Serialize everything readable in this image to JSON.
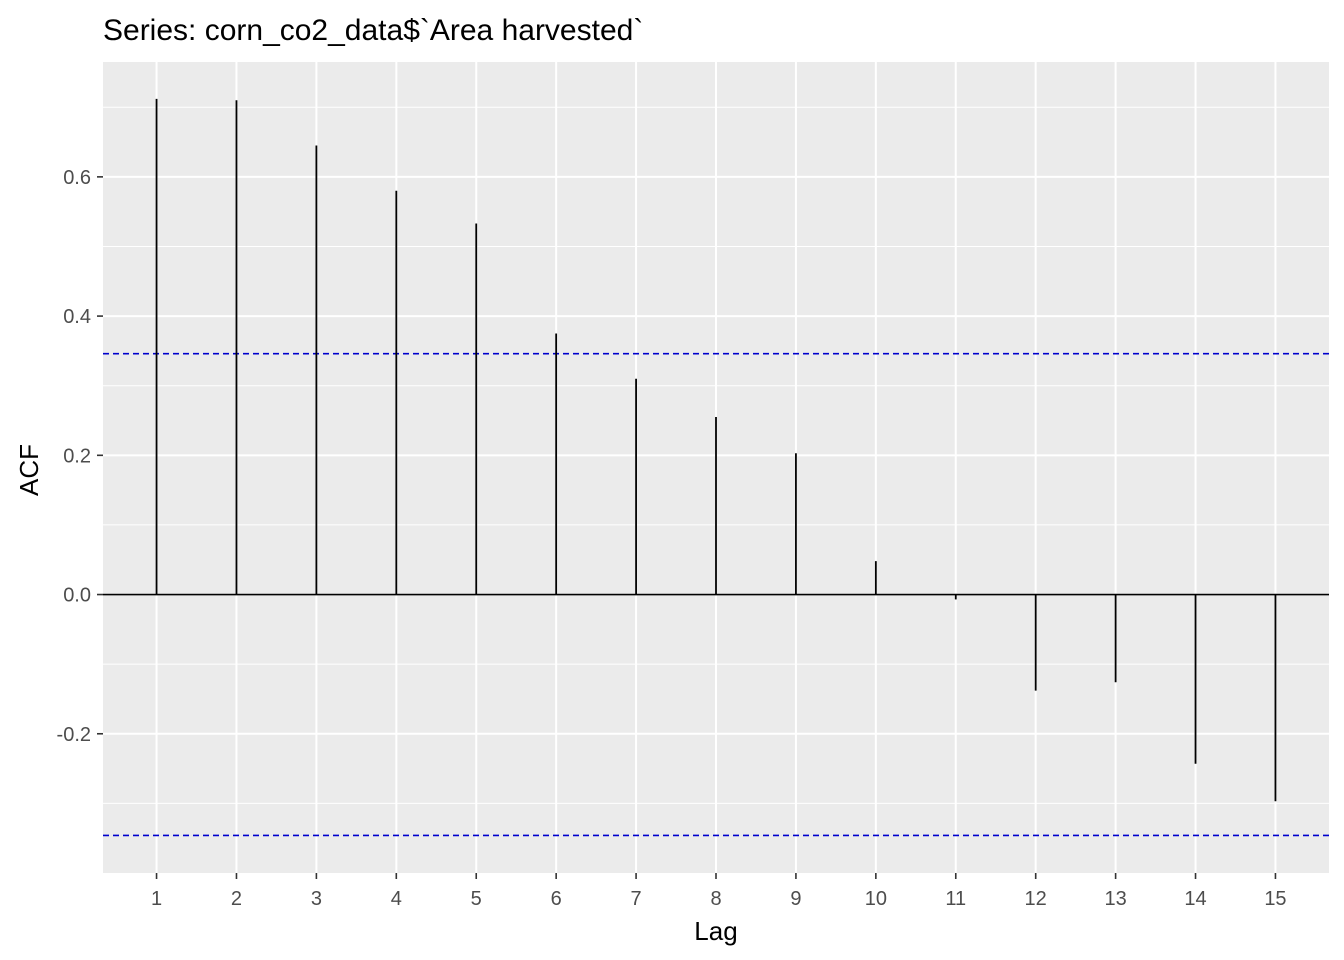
{
  "chart_data": {
    "type": "bar",
    "title": "Series: corn_co2_data$`Area harvested`",
    "xlabel": "Lag",
    "ylabel": "ACF",
    "x": [
      1,
      2,
      3,
      4,
      5,
      6,
      7,
      8,
      9,
      10,
      11,
      12,
      13,
      14,
      15
    ],
    "values": [
      0.712,
      0.71,
      0.645,
      0.58,
      0.533,
      0.375,
      0.31,
      0.255,
      0.203,
      0.048,
      -0.007,
      -0.138,
      -0.126,
      -0.243,
      -0.297
    ],
    "conf_band": [
      0.346,
      -0.346
    ],
    "xlim": [
      0.33,
      15.67
    ],
    "ylim": [
      -0.4,
      0.765
    ],
    "y_ticks": [
      -0.2,
      0.0,
      0.2,
      0.4,
      0.6
    ],
    "y_tick_labels": [
      "-0.2",
      "0.0",
      "0.2",
      "0.4",
      "0.6"
    ],
    "x_ticks": [
      1,
      2,
      3,
      4,
      5,
      6,
      7,
      8,
      9,
      10,
      11,
      12,
      13,
      14,
      15
    ],
    "grid": true,
    "colors": {
      "panel_bg": "#ebebeb",
      "grid": "#ffffff",
      "bars": "#000000",
      "conf_band": "#0000cd"
    }
  }
}
